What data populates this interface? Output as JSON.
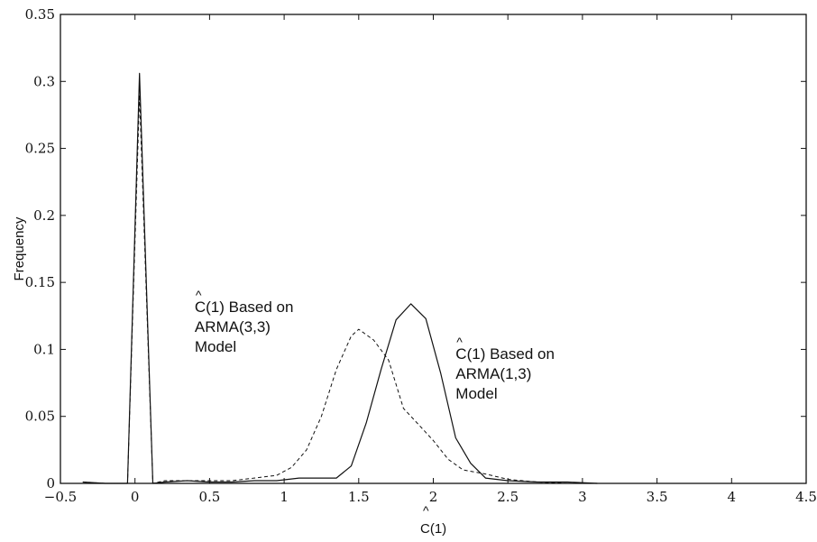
{
  "chart_data": {
    "type": "line",
    "title": "",
    "xlabel": "C(1)",
    "ylabel": "Frequency",
    "xlim": [
      -0.5,
      4.5
    ],
    "ylim": [
      0,
      0.35
    ],
    "grid": false,
    "x_ticks": [
      -0.5,
      0,
      0.5,
      1,
      1.5,
      2,
      2.5,
      3,
      3.5,
      4,
      4.5
    ],
    "x_tick_labels": [
      "−0.5",
      "0",
      "0.5",
      "1",
      "1.5",
      "2",
      "2.5",
      "3",
      "3.5",
      "4",
      "4.5"
    ],
    "y_ticks": [
      0,
      0.05,
      0.1,
      0.15,
      0.2,
      0.25,
      0.3,
      0.35
    ],
    "y_tick_labels": [
      "0",
      "0.05",
      "0.1",
      "0.15",
      "0.2",
      "0.25",
      "0.3",
      "0.35"
    ],
    "series": [
      {
        "style": "solid",
        "x": [
          -0.35,
          -0.2,
          -0.05,
          0.03,
          0.12,
          0.2,
          0.35,
          0.5,
          0.65,
          0.8,
          0.95,
          1.1,
          1.25,
          1.35,
          1.45,
          1.55,
          1.65,
          1.75,
          1.85,
          1.95,
          2.05,
          2.15,
          2.25,
          2.35,
          2.5,
          2.7,
          2.9,
          3.1
        ],
        "y": [
          0.001,
          0.0,
          0.0,
          0.306,
          0.0,
          0.001,
          0.002,
          0.001,
          0.001,
          0.002,
          0.002,
          0.004,
          0.004,
          0.004,
          0.013,
          0.045,
          0.085,
          0.122,
          0.134,
          0.123,
          0.082,
          0.034,
          0.015,
          0.004,
          0.002,
          0.001,
          0.001,
          0.0
        ]
      },
      {
        "style": "dashed",
        "x": [
          -0.35,
          -0.2,
          -0.05,
          0.03,
          0.12,
          0.2,
          0.35,
          0.5,
          0.65,
          0.8,
          0.95,
          1.05,
          1.15,
          1.25,
          1.35,
          1.45,
          1.5,
          1.6,
          1.7,
          1.8,
          1.9,
          2.0,
          2.1,
          2.2,
          2.35,
          2.5,
          2.7,
          2.9
        ],
        "y": [
          0.001,
          0.0,
          0.0,
          0.29,
          0.0,
          0.002,
          0.002,
          0.002,
          0.002,
          0.004,
          0.006,
          0.012,
          0.025,
          0.05,
          0.085,
          0.11,
          0.115,
          0.107,
          0.092,
          0.056,
          0.044,
          0.032,
          0.018,
          0.01,
          0.007,
          0.003,
          0.001,
          0.0
        ]
      }
    ],
    "annotations": [
      {
        "lines": [
          "C(1) Based on",
          "ARMA(3,3)",
          "Model"
        ],
        "anchor_x": 0.4,
        "anchor_y": 0.128
      },
      {
        "lines": [
          "C(1) Based on",
          "ARMA(1,3)",
          "Model"
        ],
        "anchor_x": 2.15,
        "anchor_y": 0.093
      }
    ]
  }
}
